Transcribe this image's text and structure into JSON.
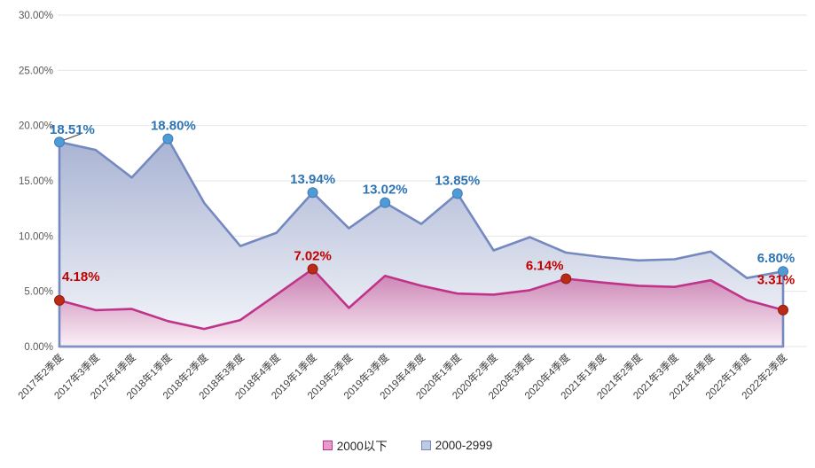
{
  "chart_data": {
    "type": "area",
    "title": "",
    "categories": [
      "2017年2季度",
      "2017年3季度",
      "2017年4季度",
      "2018年1季度",
      "2018年2季度",
      "2018年3季度",
      "2018年4季度",
      "2019年1季度",
      "2019年2季度",
      "2019年3季度",
      "2019年4季度",
      "2020年1季度",
      "2020年2季度",
      "2020年3季度",
      "2020年4季度",
      "2021年1季度",
      "2021年2季度",
      "2021年3季度",
      "2021年4季度",
      "2022年1季度",
      "2022年2季度"
    ],
    "series": [
      {
        "name": "2000-2999",
        "values": [
          18.51,
          17.8,
          15.3,
          18.8,
          13.0,
          9.1,
          10.3,
          13.94,
          10.7,
          13.02,
          11.1,
          13.85,
          8.7,
          9.9,
          8.5,
          8.1,
          7.8,
          7.9,
          8.6,
          6.2,
          6.8
        ],
        "line_color": "#7589c1",
        "fill_top": "#a8b3d3",
        "fill_bottom": "#f7f8fb",
        "marker_color": "#4f9bd5",
        "marker_edge": "#3f7cb8",
        "label_color": "#2e74b5",
        "point_labels": [
          {
            "index": 0,
            "text": "18.51%"
          },
          {
            "index": 3,
            "text": "18.80%"
          },
          {
            "index": 7,
            "text": "13.94%"
          },
          {
            "index": 9,
            "text": "13.02%"
          },
          {
            "index": 11,
            "text": "13.85%"
          },
          {
            "index": 20,
            "text": "6.80%"
          }
        ]
      },
      {
        "name": "2000以下",
        "values": [
          4.18,
          3.3,
          3.4,
          2.3,
          1.6,
          2.4,
          4.7,
          7.02,
          3.5,
          6.4,
          5.5,
          4.8,
          4.7,
          5.1,
          6.14,
          5.8,
          5.5,
          5.4,
          6.0,
          4.2,
          3.31
        ],
        "line_color": "#bf3489",
        "fill_top": "#c778ad",
        "fill_bottom": "#faf1f7",
        "marker_color": "#bb2a17",
        "marker_edge": "#8f1d10",
        "label_color": "#c00000",
        "point_labels": [
          {
            "index": 0,
            "text": "4.18%"
          },
          {
            "index": 7,
            "text": "7.02%"
          },
          {
            "index": 14,
            "text": "6.14%"
          },
          {
            "index": 20,
            "text": "3.31%"
          }
        ]
      }
    ],
    "y_axis": {
      "min": 0,
      "max": 30,
      "step": 5,
      "tick_labels": [
        "0.00%",
        "5.00%",
        "10.00%",
        "15.00%",
        "20.00%",
        "25.00%",
        "30.00%"
      ],
      "tick_color": "#595959"
    },
    "x_axis": {
      "tick_color": "#3f3f3f"
    },
    "grid": {
      "show": true,
      "color": "#e4e4e4"
    },
    "baseline_color": "#8091c6",
    "legend": {
      "position": "bottom",
      "items": [
        {
          "label": "2000以下",
          "swatch_fill": "#e59cca",
          "swatch_border": "#bf3489"
        },
        {
          "label": "2000-2999",
          "swatch_fill": "#c0cae2",
          "swatch_border": "#7589c1"
        }
      ]
    }
  }
}
